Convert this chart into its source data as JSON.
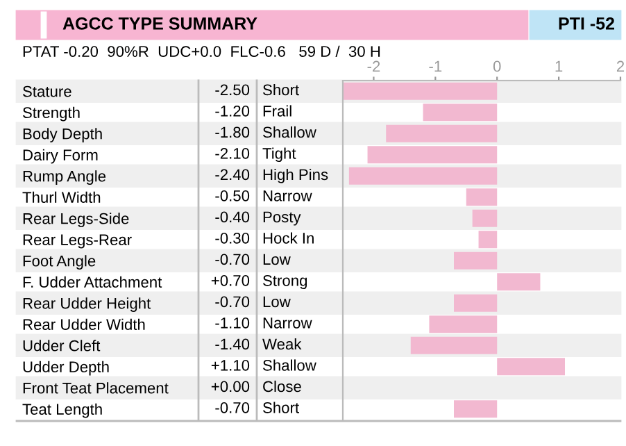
{
  "chart_data": {
    "type": "bar",
    "orientation": "horizontal",
    "title": "AGCC TYPE SUMMARY",
    "subtitle": "PTAT -0.20  90%R  UDC+0.0  FLC-0.6   59 D /  30 H",
    "categories": [
      "Stature",
      "Strength",
      "Body Depth",
      "Dairy Form",
      "Rump Angle",
      "Thurl Width",
      "Rear Legs-Side",
      "Rear Legs-Rear",
      "Foot Angle",
      "F. Udder Attachment",
      "Rear Udder Height",
      "Rear Udder Width",
      "Udder Cleft",
      "Udder Depth",
      "Front Teat Placement",
      "Teat Length"
    ],
    "values": [
      -2.5,
      -1.2,
      -1.8,
      -2.1,
      -2.4,
      -0.5,
      -0.4,
      -0.3,
      -0.7,
      0.7,
      -0.7,
      -1.1,
      -1.4,
      1.1,
      0.0,
      -0.7
    ],
    "value_labels": [
      "-2.50",
      "-1.20",
      "-1.80",
      "-2.10",
      "-2.40",
      "-0.50",
      "-0.40",
      "-0.30",
      "-0.70",
      "+0.70",
      "-0.70",
      "-1.10",
      "-1.40",
      "+1.10",
      "+0.00",
      "-0.70"
    ],
    "color": "#f2b8d0",
    "x2lim": [
      -2.5,
      2
    ],
    "x2ticks": [
      -2,
      -1,
      0,
      1,
      2
    ],
    "grid": false,
    "legend": false,
    "annotations": [
      "PTI -52",
      "Short",
      "Frail",
      "Shallow",
      "Tight",
      "High Pins",
      "Narrow",
      "Posty",
      "Hock In",
      "Low",
      "Strong",
      "Low",
      "Narrow",
      "Weak",
      "Shallow",
      "Close",
      "Short"
    ]
  }
}
